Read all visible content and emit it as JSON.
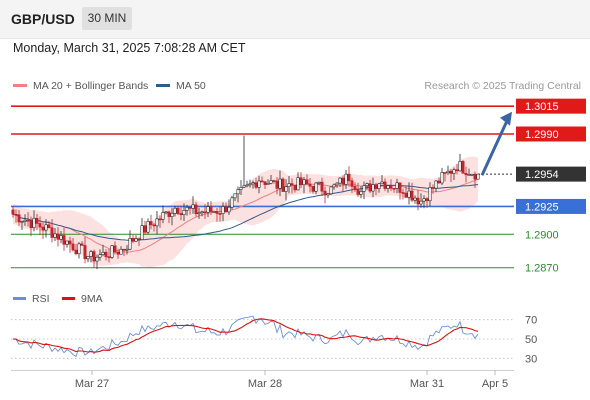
{
  "header": {
    "symbol": "GBP/USD",
    "timeframe": "30 MIN"
  },
  "datetime": "Monday, March 31, 2025 7:08:28 AM CET",
  "legend": {
    "items": [
      {
        "label": "MA 20 + Bollinger Bands",
        "color": "#f08080"
      },
      {
        "label": "MA 50",
        "color": "#2e5a8c"
      }
    ],
    "credit": "Research © 2025 Trading Central"
  },
  "rsi_legend": {
    "items": [
      {
        "label": "RSI",
        "color": "#6b8fd6"
      },
      {
        "label": "9MA",
        "color": "#dd1111"
      }
    ]
  },
  "chart_data": {
    "type": "candlestick",
    "price_axis": {
      "min": 1.285,
      "max": 1.3025
    },
    "current_price": {
      "value": 1.2954,
      "label": "1.2954",
      "color": "#333333"
    },
    "levels": [
      {
        "value": 1.3015,
        "label": "1.3015",
        "color": "#e01919",
        "kind": "resistance"
      },
      {
        "value": 1.299,
        "label": "1.2990",
        "color": "#e01919",
        "kind": "resistance"
      },
      {
        "value": 1.2925,
        "label": "1.2925",
        "color": "#3a6fd8",
        "kind": "pivot"
      },
      {
        "value": 1.29,
        "label": "1.2900",
        "color": "#2e8b2e",
        "kind": "support"
      },
      {
        "value": 1.287,
        "label": "1.2870",
        "color": "#2e8b2e",
        "kind": "support"
      }
    ],
    "forecast_arrow": {
      "from_price": 1.2953,
      "to_price": 1.301,
      "color": "#3a64a8"
    },
    "x_ticks": [
      "Mar 27",
      "Mar 28",
      "Mar 31",
      "Apr 5"
    ],
    "rsi": {
      "levels": [
        70,
        50,
        30
      ],
      "labels": [
        "70",
        "50",
        "30"
      ],
      "range": [
        20,
        80
      ]
    }
  }
}
